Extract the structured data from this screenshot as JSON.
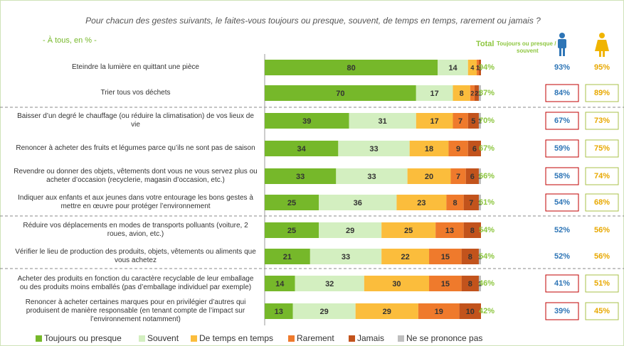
{
  "chart_data": {
    "type": "stacked-bar-horizontal",
    "title": "Pour chacun des gestes suivants,  le faites-vous toujours ou presque, souvent, de temps en temps, rarement ou jamais ?",
    "subtitle": "- À tous, en % -",
    "categories": [
      "Eteindre la lumière en quittant une pièce",
      "Trier tous vos déchets",
      "Baisser d’un degré le chauffage (ou réduire la climatisation) de vos lieux de vie",
      "Renoncer à acheter des fruits et légumes parce qu’ils ne sont pas de saison",
      "Revendre ou donner des objets, vêtements dont vous ne vous servez plus ou acheter d’occasion (recyclerie, magasin d’occasion, etc.)",
      "Indiquer aux enfants et aux jeunes dans votre entourage les bons gestes à mettre en œuvre pour protéger l’environnement",
      "Réduire vos déplacements en modes de transports polluants (voiture, 2 roues, avion, etc.)",
      "Vérifier le lieu de production  des produits, objets, vêtements ou aliments que vous achetez",
      "Acheter des produits en fonction du caractère recyclable de leur emballage ou des produits  moins emballés (pas d’emballage individuel par exemple)",
      "Renoncer à acheter certaines marques pour en privilégier d’autres qui produisent de manière responsable (en tenant compte de l’impact sur l’environnement notamment)"
    ],
    "xlim": [
      0,
      100
    ],
    "series": [
      {
        "name": "Toujours ou presque",
        "color": "#76b82a",
        "values": [
          80,
          70,
          39,
          34,
          33,
          25,
          25,
          21,
          14,
          13
        ]
      },
      {
        "name": "Souvent",
        "color": "#d3efc0",
        "values": [
          14,
          17,
          31,
          33,
          33,
          36,
          29,
          33,
          32,
          29
        ]
      },
      {
        "name": "De temps en temps",
        "color": "#fbbd3c",
        "values": [
          4,
          8,
          17,
          18,
          20,
          23,
          25,
          22,
          30,
          29
        ]
      },
      {
        "name": "Rarement",
        "color": "#ef7a2c",
        "values": [
          1,
          2,
          7,
          9,
          7,
          8,
          13,
          15,
          15,
          19
        ]
      },
      {
        "name": "Jamais",
        "color": "#c2531c",
        "values": [
          1,
          2,
          5,
          6,
          6,
          7,
          8,
          8,
          8,
          10
        ]
      },
      {
        "name": "Ne se prononce pas",
        "color": "#bfbfbf",
        "values": [
          0,
          1,
          1,
          0,
          1,
          1,
          0,
          1,
          1,
          0
        ]
      }
    ],
    "total_header": "Total",
    "total_subheader": "Toujours ou presque / souvent",
    "total": [
      "94%",
      "87%",
      "70%",
      "67%",
      "66%",
      "61%",
      "54%",
      "54%",
      "46%",
      "42%"
    ],
    "men": [
      "93%",
      "84%",
      "67%",
      "59%",
      "58%",
      "54%",
      "52%",
      "52%",
      "41%",
      "39%"
    ],
    "women": [
      "95%",
      "89%",
      "73%",
      "75%",
      "74%",
      "68%",
      "56%",
      "56%",
      "51%",
      "45%"
    ],
    "men_highlight": [
      false,
      true,
      true,
      true,
      true,
      true,
      false,
      false,
      true,
      true
    ],
    "women_highlight": [
      false,
      true,
      true,
      true,
      true,
      true,
      false,
      false,
      true,
      true
    ]
  }
}
